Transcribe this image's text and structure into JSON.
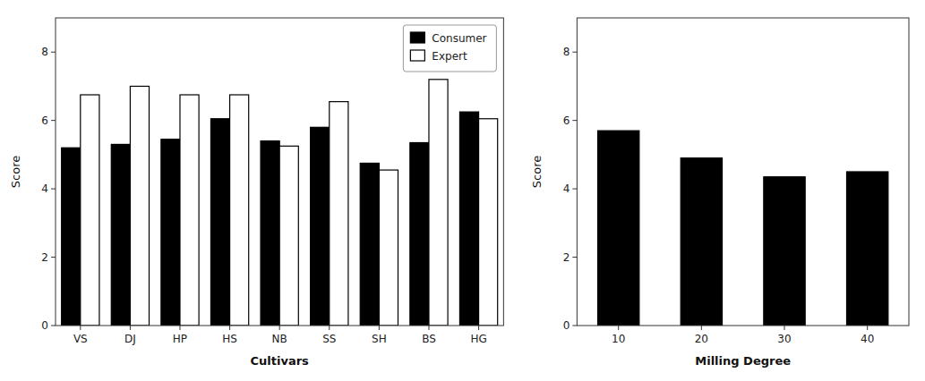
{
  "chart_data": [
    {
      "type": "bar",
      "categories": [
        "VS",
        "DJ",
        "HP",
        "HS",
        "NB",
        "SS",
        "SH",
        "BS",
        "HG"
      ],
      "series": [
        {
          "name": "Consumer",
          "color": "#000000",
          "values": [
            5.2,
            5.3,
            5.45,
            6.05,
            5.4,
            5.8,
            4.75,
            5.35,
            6.25
          ]
        },
        {
          "name": "Expert",
          "color": "#ffffff",
          "values": [
            6.75,
            7.0,
            6.75,
            6.75,
            5.25,
            6.55,
            4.55,
            7.2,
            6.05
          ]
        }
      ],
      "xlabel": "Cultivars",
      "ylabel": "Score",
      "ylim": [
        0,
        9
      ],
      "yticks": [
        0,
        2,
        4,
        6,
        8
      ],
      "grid": false,
      "legend": "upper-right"
    },
    {
      "type": "bar",
      "categories": [
        "10",
        "20",
        "30",
        "40"
      ],
      "values": [
        5.7,
        4.9,
        4.35,
        4.5
      ],
      "color": "#000000",
      "xlabel": "Milling Degree",
      "ylabel": "Score",
      "ylim": [
        0,
        9
      ],
      "yticks": [
        0,
        2,
        4,
        6,
        8
      ],
      "grid": false
    }
  ]
}
